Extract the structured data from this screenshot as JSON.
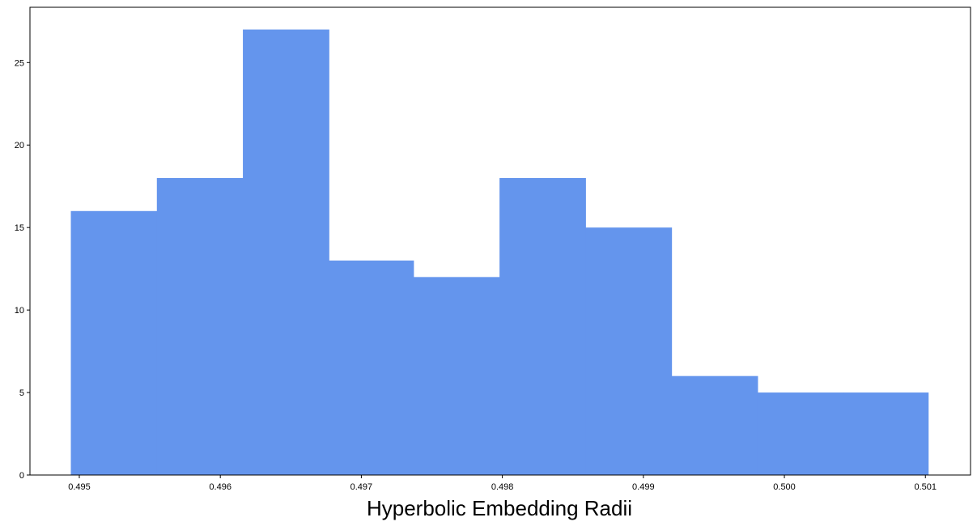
{
  "chart_data": {
    "type": "bar",
    "title": "",
    "xlabel": "Hyperbolic Embedding Radii",
    "ylabel": "",
    "bin_edges": [
      0.49494,
      0.49555,
      0.49616,
      0.49677,
      0.49737,
      0.49798,
      0.49859,
      0.4992,
      0.49981,
      0.50042,
      0.50102
    ],
    "values": [
      16,
      18,
      27,
      13,
      12,
      18,
      15,
      6,
      5,
      5
    ],
    "xlim": [
      0.49465,
      0.50132
    ],
    "ylim": [
      0,
      28.35
    ],
    "xticks": [
      0.495,
      0.496,
      0.497,
      0.498,
      0.499,
      0.5,
      0.501
    ],
    "xtick_labels": [
      "0.495",
      "0.496",
      "0.497",
      "0.498",
      "0.499",
      "0.500",
      "0.501"
    ],
    "yticks": [
      0,
      5,
      10,
      15,
      20,
      25
    ],
    "ytick_labels": [
      "0",
      "5",
      "10",
      "15",
      "20",
      "25"
    ],
    "bar_color": "#6495ED",
    "grid": false,
    "legend": "none"
  }
}
